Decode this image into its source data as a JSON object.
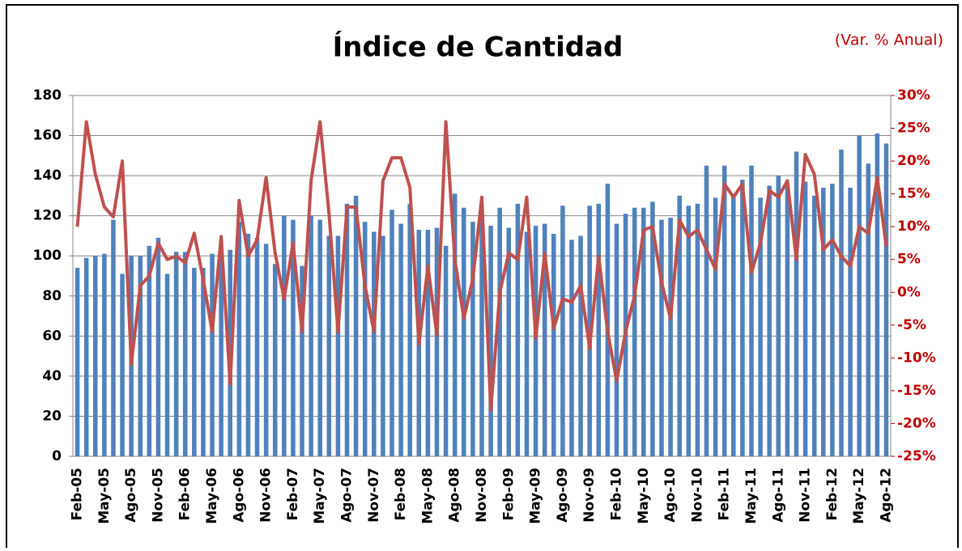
{
  "chart_data": {
    "type": "bar-line",
    "title": "Índice de Cantidad",
    "subtitle": "(Var. % Anual)",
    "categories": [
      "Feb-05",
      null,
      null,
      "May-05",
      null,
      null,
      "Ago-05",
      null,
      null,
      "Nov-05",
      null,
      null,
      "Feb-06",
      null,
      null,
      "May-06",
      null,
      null,
      "Ago-06",
      null,
      null,
      "Nov-06",
      null,
      null,
      "Feb-07",
      null,
      null,
      "May-07",
      null,
      null,
      "Ago-07",
      null,
      null,
      "Nov-07",
      null,
      null,
      "Feb-08",
      null,
      null,
      "May-08",
      null,
      null,
      "Ago-08",
      null,
      null,
      "Nov-08",
      null,
      null,
      "Feb-09",
      null,
      null,
      "May-09",
      null,
      null,
      "Ago-09",
      null,
      null,
      "Nov-09",
      null,
      null,
      "Feb-10",
      null,
      null,
      "May-10",
      null,
      null,
      "Ago-10",
      null,
      null,
      "Nov-10",
      null,
      null,
      "Feb-11",
      null,
      null,
      "May-11",
      null,
      null,
      "Ago-11",
      null,
      null,
      "Nov-11",
      null,
      null,
      "Feb-12",
      null,
      null,
      "May-12",
      null,
      null,
      "Ago-12"
    ],
    "series": [
      {
        "type": "bar",
        "color": "#4f81bd",
        "values": [
          94,
          99,
          100,
          101,
          118,
          91,
          100,
          100,
          105,
          109,
          91,
          102,
          102,
          94,
          94,
          101,
          103,
          103,
          117,
          111,
          109,
          106,
          96,
          120,
          118,
          95,
          120,
          118,
          110,
          110,
          126,
          130,
          117,
          112,
          110,
          123,
          116,
          126,
          113,
          113,
          114,
          105,
          131,
          124,
          117,
          119,
          115,
          124,
          114,
          126,
          112,
          115,
          116,
          111,
          125,
          108,
          110,
          125,
          126,
          136,
          116,
          121,
          124,
          124,
          127,
          118,
          119,
          130,
          125,
          126,
          145,
          129,
          145,
          131,
          138,
          145,
          129,
          135,
          140,
          135,
          152,
          137,
          130,
          134,
          136,
          153,
          134,
          160,
          146,
          161,
          156
        ]
      },
      {
        "type": "line",
        "color": "#c0504d",
        "axis": "y2",
        "values": [
          10,
          26,
          18,
          13,
          11.5,
          20,
          -11,
          1,
          2.5,
          7.5,
          5,
          5.5,
          4.5,
          9,
          2,
          -6,
          8.5,
          -14,
          14,
          5.5,
          8,
          17.5,
          6,
          -1,
          7.5,
          -6,
          17,
          26,
          12,
          -6,
          13,
          13,
          1,
          -6,
          17,
          20.5,
          20.5,
          16,
          -8,
          4,
          -6.5,
          26,
          5,
          -4,
          2,
          14.5,
          -18,
          0,
          6,
          5,
          14.5,
          -7,
          6,
          -5.5,
          -1,
          -1.5,
          1,
          -8.5,
          5.5,
          -6,
          -13.5,
          -6,
          -0.5,
          9.5,
          10,
          1.5,
          -4,
          11,
          8.5,
          9.5,
          6.5,
          3.5,
          16.5,
          14.5,
          16.5,
          3,
          7.5,
          15.5,
          14.5,
          17,
          5,
          21,
          18,
          6.5,
          8,
          5.5,
          4,
          10,
          9,
          17.5,
          7
        ]
      }
    ],
    "ylim": [
      0,
      180
    ],
    "yticks": [
      0,
      20,
      40,
      60,
      80,
      100,
      120,
      140,
      160,
      180
    ],
    "y2lim": [
      -25,
      30
    ],
    "y2ticks": [
      {
        "value": -25,
        "label": "-25%"
      },
      {
        "value": -20,
        "label": "-20%"
      },
      {
        "value": -15,
        "label": "-15%"
      },
      {
        "value": -10,
        "label": "-10%"
      },
      {
        "value": -5,
        "label": "-5%"
      },
      {
        "value": 0,
        "label": "0%"
      },
      {
        "value": 5,
        "label": "5%"
      },
      {
        "value": 10,
        "label": "10%"
      },
      {
        "value": 15,
        "label": "15%"
      },
      {
        "value": 20,
        "label": "20%"
      },
      {
        "value": 25,
        "label": "25%"
      },
      {
        "value": 30,
        "label": "30%"
      }
    ],
    "grid": true
  }
}
